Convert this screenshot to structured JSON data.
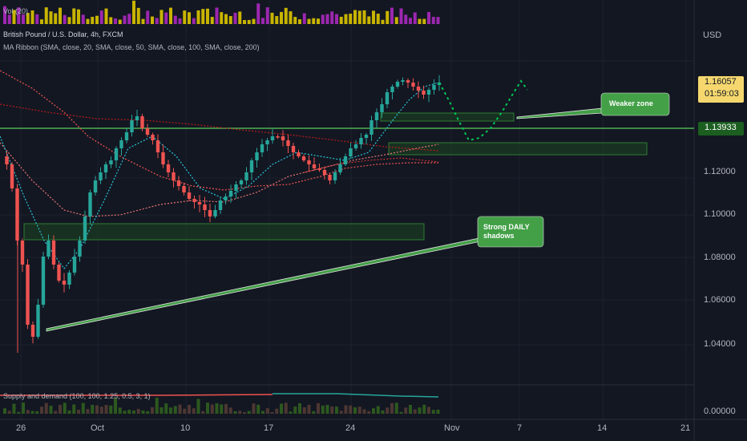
{
  "header": {
    "vol_label": "Vol (20)",
    "symbol_line": "British Pound / U.S. Dollar, 4h, FXCM",
    "ma_ribbon_line": "MA Ribbon (SMA, close, 20, SMA, close, 50, SMA, close, 100, SMA, close, 200)"
  },
  "price_axis": {
    "currency": "USD",
    "ticks": [
      "1.12000",
      "1.10000",
      "1.08000",
      "1.06000",
      "1.04000"
    ],
    "current_price": "1.16057",
    "countdown": "01:59:03",
    "level_price": "1.13933",
    "sd_tick": "0.00000"
  },
  "time_axis": {
    "ticks": [
      "26",
      "Oct",
      "10",
      "17",
      "24",
      "Nov",
      "7",
      "14",
      "21"
    ]
  },
  "indicators": {
    "supply_demand_label": "Supply and demand (100, 100, 1.25, 0.5, 3, 1)"
  },
  "annotations": {
    "weaker_zone": "Weaker zone",
    "strong_daily_line1": "Strong DAILY",
    "strong_daily_line2": "shadows"
  },
  "colors": {
    "background": "#131722",
    "bull": "#26a69a",
    "bear": "#ef5350",
    "level_line": "#4caf50",
    "price_tag_bg": "#f5d76e",
    "level_tag_bg": "#1b5e20",
    "callout_bg": "#43a047",
    "ma_fast": "#26c6da",
    "ma_mid": "#ef5350",
    "ma_slow": "#b71c1c",
    "vol_yellow": "#c8b400",
    "vol_purple": "#9c27b0"
  }
}
